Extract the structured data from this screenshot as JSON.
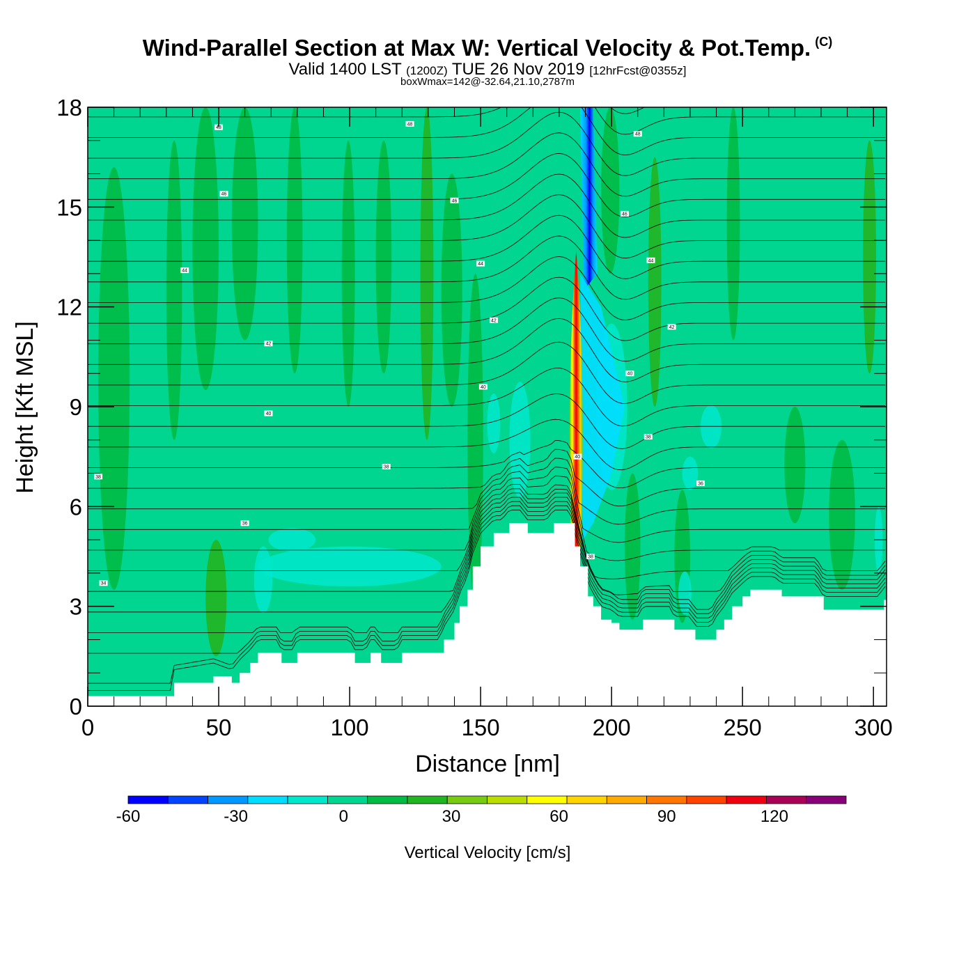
{
  "title": {
    "main": "Wind-Parallel Section at Max W: Vertical Velocity & Pot.Temp.",
    "copyright": "(C)",
    "valid_prefix": "Valid 1400 LST",
    "utc": "(1200Z)",
    "valid_date": "TUE 26 Nov 2019",
    "forecast": "[12hrFcst@0355z]",
    "box_info": "boxWmax=142@-32.64,21.10,2787m"
  },
  "chart_data": {
    "type": "heatmap",
    "xlabel": "Distance [nm]",
    "ylabel": "Height [Kft MSL]",
    "xlim": [
      0,
      305
    ],
    "ylim": [
      0,
      18
    ],
    "x_ticks": [
      0,
      50,
      100,
      150,
      200,
      250,
      300
    ],
    "y_ticks": [
      0,
      3,
      6,
      9,
      12,
      15,
      18
    ],
    "colorbar": {
      "label": "Vertical Velocity [cm/s]",
      "range": [
        -60,
        140
      ],
      "tick_values": [
        -60,
        -30,
        0,
        30,
        60,
        90,
        120
      ],
      "colors": [
        "#0000ff",
        "#0044ff",
        "#0099ff",
        "#00ddff",
        "#00e8cc",
        "#00d68f",
        "#00bb44",
        "#22b522",
        "#77cc11",
        "#bbdd00",
        "#ffff00",
        "#ffd400",
        "#ffaa00",
        "#ff7700",
        "#ff4400",
        "#ee0011",
        "#aa0055",
        "#880077"
      ]
    },
    "terrain": [
      [
        0,
        0.3
      ],
      [
        30,
        0.3
      ],
      [
        33,
        0.7
      ],
      [
        48,
        0.9
      ],
      [
        55,
        0.7
      ],
      [
        58,
        1.0
      ],
      [
        62,
        1.3
      ],
      [
        65,
        1.6
      ],
      [
        72,
        1.6
      ],
      [
        74,
        1.3
      ],
      [
        78,
        1.3
      ],
      [
        80,
        1.6
      ],
      [
        100,
        1.6
      ],
      [
        102,
        1.3
      ],
      [
        106,
        1.3
      ],
      [
        108,
        1.6
      ],
      [
        110,
        1.6
      ],
      [
        112,
        1.3
      ],
      [
        118,
        1.3
      ],
      [
        120,
        1.6
      ],
      [
        134,
        1.6
      ],
      [
        136,
        2.0
      ],
      [
        140,
        2.5
      ],
      [
        142,
        3.0
      ],
      [
        145,
        3.5
      ],
      [
        147,
        4.2
      ],
      [
        150,
        4.8
      ],
      [
        155,
        5.2
      ],
      [
        158,
        5.2
      ],
      [
        161,
        5.5
      ],
      [
        165,
        5.5
      ],
      [
        168,
        5.2
      ],
      [
        175,
        5.2
      ],
      [
        178,
        5.5
      ],
      [
        184,
        5.5
      ],
      [
        186,
        4.8
      ],
      [
        188,
        4.2
      ],
      [
        191,
        3.3
      ],
      [
        193,
        3.0
      ],
      [
        196,
        2.6
      ],
      [
        200,
        2.5
      ],
      [
        203,
        2.3
      ],
      [
        210,
        2.3
      ],
      [
        212,
        2.6
      ],
      [
        222,
        2.6
      ],
      [
        224,
        2.3
      ],
      [
        230,
        2.3
      ],
      [
        232,
        2.0
      ],
      [
        238,
        2.0
      ],
      [
        240,
        2.3
      ],
      [
        243,
        2.6
      ],
      [
        246,
        3.0
      ],
      [
        250,
        3.3
      ],
      [
        253,
        3.5
      ],
      [
        262,
        3.5
      ],
      [
        265,
        3.3
      ],
      [
        278,
        3.3
      ],
      [
        281,
        2.9
      ],
      [
        302,
        2.9
      ],
      [
        304,
        3.2
      ],
      [
        305,
        3.2
      ]
    ],
    "updraft_core": {
      "x": 186.5,
      "height_range": [
        4.5,
        13.7
      ],
      "max_value": 142
    },
    "downdraft_core": {
      "x": 190,
      "height_range": [
        13.0,
        18.0
      ],
      "min_value": -60
    },
    "isentrope_labels": [
      {
        "text": "48",
        "x": 50,
        "y": 17.4
      },
      {
        "text": "48",
        "x": 123,
        "y": 17.5
      },
      {
        "text": "48",
        "x": 210,
        "y": 17.2
      },
      {
        "text": "46",
        "x": 52,
        "y": 15.4
      },
      {
        "text": "46",
        "x": 140,
        "y": 15.2
      },
      {
        "text": "46",
        "x": 205,
        "y": 14.8
      },
      {
        "text": "44",
        "x": 37,
        "y": 13.1
      },
      {
        "text": "44",
        "x": 150,
        "y": 13.3
      },
      {
        "text": "44",
        "x": 215,
        "y": 13.4
      },
      {
        "text": "42",
        "x": 69,
        "y": 10.9
      },
      {
        "text": "42",
        "x": 155,
        "y": 11.6
      },
      {
        "text": "42",
        "x": 223,
        "y": 11.4
      },
      {
        "text": "40",
        "x": 69,
        "y": 8.8
      },
      {
        "text": "40",
        "x": 151,
        "y": 9.6
      },
      {
        "text": "40",
        "x": 207,
        "y": 10.0
      },
      {
        "text": "40",
        "x": 187,
        "y": 7.5
      },
      {
        "text": "38",
        "x": 114,
        "y": 7.2
      },
      {
        "text": "38",
        "x": 214,
        "y": 8.1
      },
      {
        "text": "38",
        "x": 4,
        "y": 6.9
      },
      {
        "text": "36",
        "x": 60,
        "y": 5.5
      },
      {
        "text": "36",
        "x": 234,
        "y": 6.7
      },
      {
        "text": "34",
        "x": 6,
        "y": 3.7
      },
      {
        "text": "38",
        "x": 192,
        "y": 4.5
      }
    ]
  }
}
